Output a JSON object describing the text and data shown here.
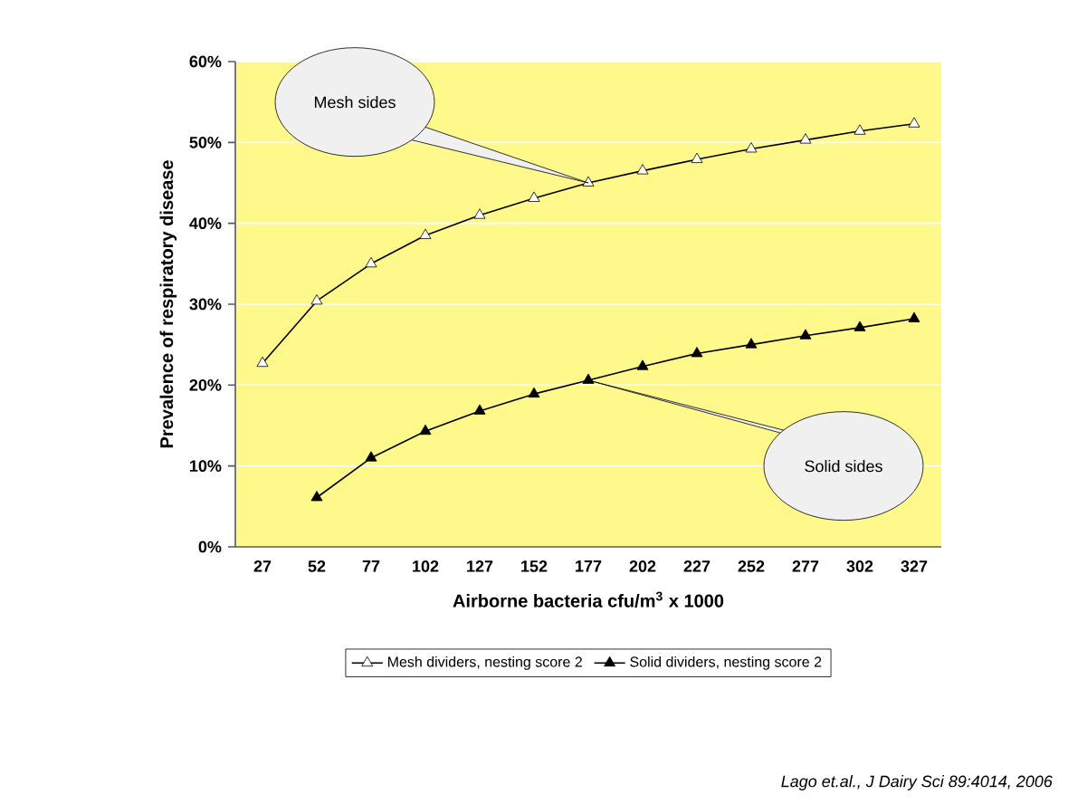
{
  "chart_data": {
    "type": "line",
    "xlabel": "Airborne bacteria cfu/m$^{3}$ x 1000",
    "ylabel": "Prevalence of respiratory disease",
    "categories": [
      "27",
      "52",
      "77",
      "102",
      "127",
      "152",
      "177",
      "202",
      "227",
      "252",
      "277",
      "302",
      "327"
    ],
    "series": [
      {
        "name": "Mesh dividers, nesting score 2",
        "color": "#000000",
        "values": [
          22.7,
          30.4,
          35.0,
          38.5,
          41.0,
          43.1,
          45.0,
          46.5,
          47.9,
          49.2,
          50.3,
          51.4,
          52.3
        ]
      },
      {
        "name": "Solid dividers, nesting score 2",
        "color": "#000000",
        "values": [
          null,
          6.1,
          11.0,
          14.3,
          16.8,
          18.9,
          20.6,
          22.3,
          23.9,
          25.0,
          26.1,
          27.1,
          28.2
        ]
      }
    ],
    "ylim": [
      0,
      60
    ],
    "yticks": [
      {
        "value": 0,
        "label": "0%"
      },
      {
        "value": 10,
        "label": "10%"
      },
      {
        "value": 20,
        "label": "20%"
      },
      {
        "value": 30,
        "label": "30%"
      },
      {
        "value": 40,
        "label": "40%"
      },
      {
        "value": 50,
        "label": "50%"
      },
      {
        "value": 60,
        "label": "60%"
      }
    ],
    "grid": "y",
    "legend": "bottom",
    "marker": "triangle",
    "line_style": "solid",
    "annotations": [
      {
        "text": "Mesh sides",
        "x": "177",
        "y": 45.0
      },
      {
        "text": "Solid sides",
        "x": "177",
        "y": 20.6
      },
      "Lago et.al., J Dairy Sci 89:4014, 2006"
    ]
  }
}
